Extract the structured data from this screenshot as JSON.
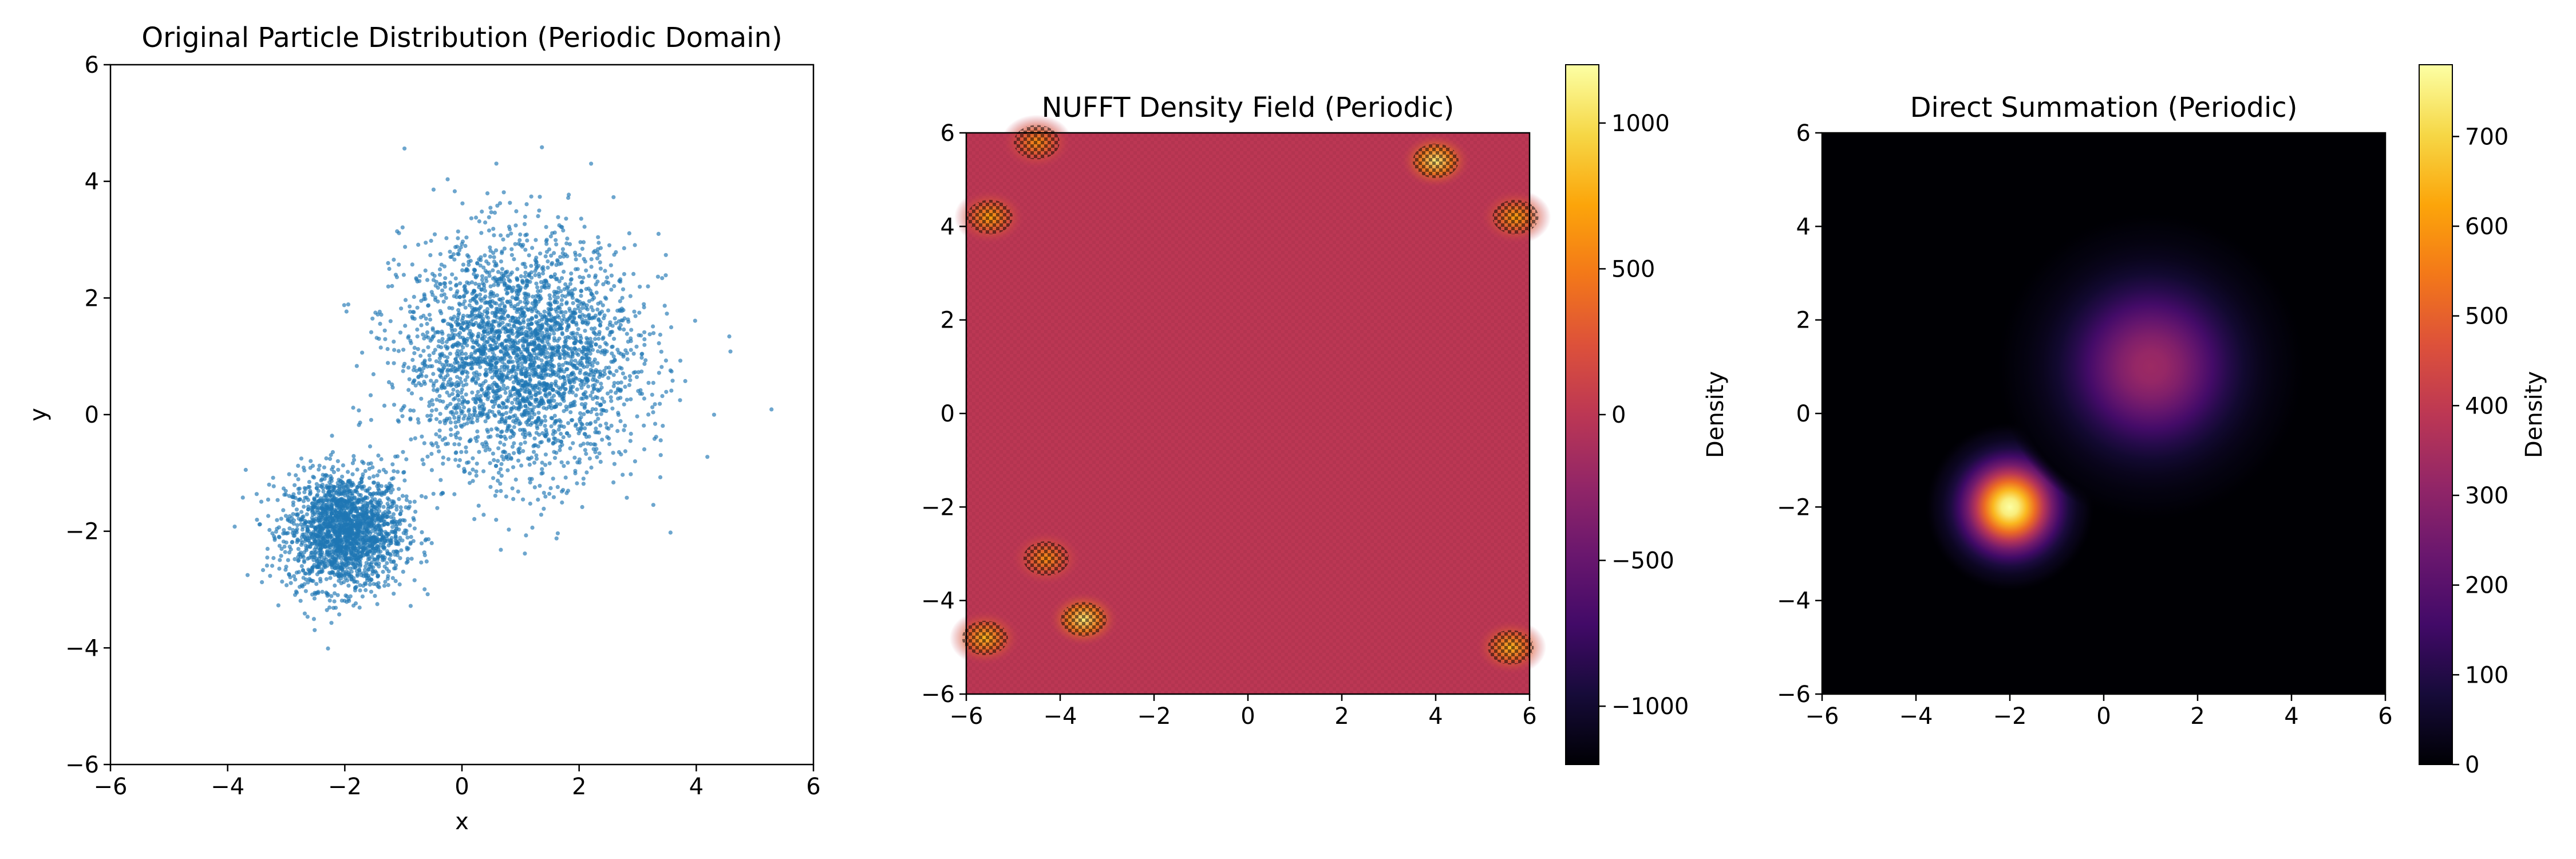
{
  "chart_data": [
    {
      "type": "scatter",
      "title": "Original Particle Distribution (Periodic Domain)",
      "xlabel": "x",
      "ylabel": "y",
      "xlim": [
        -6,
        6
      ],
      "ylim": [
        -6,
        6
      ],
      "xticks": [
        "−6",
        "−4",
        "−2",
        "0",
        "2",
        "4",
        "6"
      ],
      "yticks": [
        "−6",
        "−4",
        "−2",
        "0",
        "2",
        "4",
        "6"
      ],
      "color": "#1f77b4",
      "grid": false,
      "clusters": [
        {
          "center": [
            -2,
            -2
          ],
          "std": [
            0.5,
            0.5
          ],
          "approx_points": 2000
        },
        {
          "center": [
            1,
            1
          ],
          "std": [
            1.0,
            1.0
          ],
          "approx_points": 3000
        }
      ],
      "marker_size": "small"
    },
    {
      "type": "heatmap",
      "title": "NUFFT Density Field (Periodic)",
      "xlim": [
        -6,
        6
      ],
      "ylim": [
        -6,
        6
      ],
      "xticks": [
        "−6",
        "−4",
        "−2",
        "0",
        "2",
        "4",
        "6"
      ],
      "yticks": [
        "−6",
        "−4",
        "−2",
        "0",
        "2",
        "4",
        "6"
      ],
      "colormap": "inferno",
      "colorbar_label": "Density",
      "colorbar_range": [
        -1200,
        1200
      ],
      "colorbar_ticks": [
        "1000",
        "500",
        "0",
        "−500",
        "−1000"
      ],
      "background_value": 0,
      "hotspots": [
        {
          "center": [
            4,
            5.4
          ],
          "peak": 1100
        },
        {
          "center": [
            -3.5,
            -4.4
          ],
          "peak": 1100
        },
        {
          "center": [
            -5.5,
            4.2
          ],
          "peak": 700
        },
        {
          "center": [
            -4.5,
            5.8
          ],
          "peak": 600
        },
        {
          "center": [
            5.7,
            4.2
          ],
          "peak": 700
        },
        {
          "center": [
            -4.3,
            -3.1
          ],
          "peak": 600
        },
        {
          "center": [
            5.6,
            -5
          ],
          "peak": 800
        },
        {
          "center": [
            -5.6,
            -4.8
          ],
          "peak": 800
        }
      ]
    },
    {
      "type": "heatmap",
      "title": "Direct Summation (Periodic)",
      "xlim": [
        -6,
        6
      ],
      "ylim": [
        -6,
        6
      ],
      "xticks": [
        "−6",
        "−4",
        "−2",
        "0",
        "2",
        "4",
        "6"
      ],
      "yticks": [
        "−6",
        "−4",
        "−2",
        "0",
        "2",
        "4",
        "6"
      ],
      "colormap": "inferno",
      "colorbar_label": "Density",
      "colorbar_range": [
        0,
        780
      ],
      "colorbar_ticks": [
        "700",
        "600",
        "500",
        "400",
        "300",
        "200",
        "100",
        "0"
      ],
      "blobs": [
        {
          "center": [
            -2,
            -2
          ],
          "peak": 780,
          "sigma": 0.6
        },
        {
          "center": [
            1,
            1
          ],
          "peak": 330,
          "sigma": 1.1
        }
      ]
    }
  ]
}
